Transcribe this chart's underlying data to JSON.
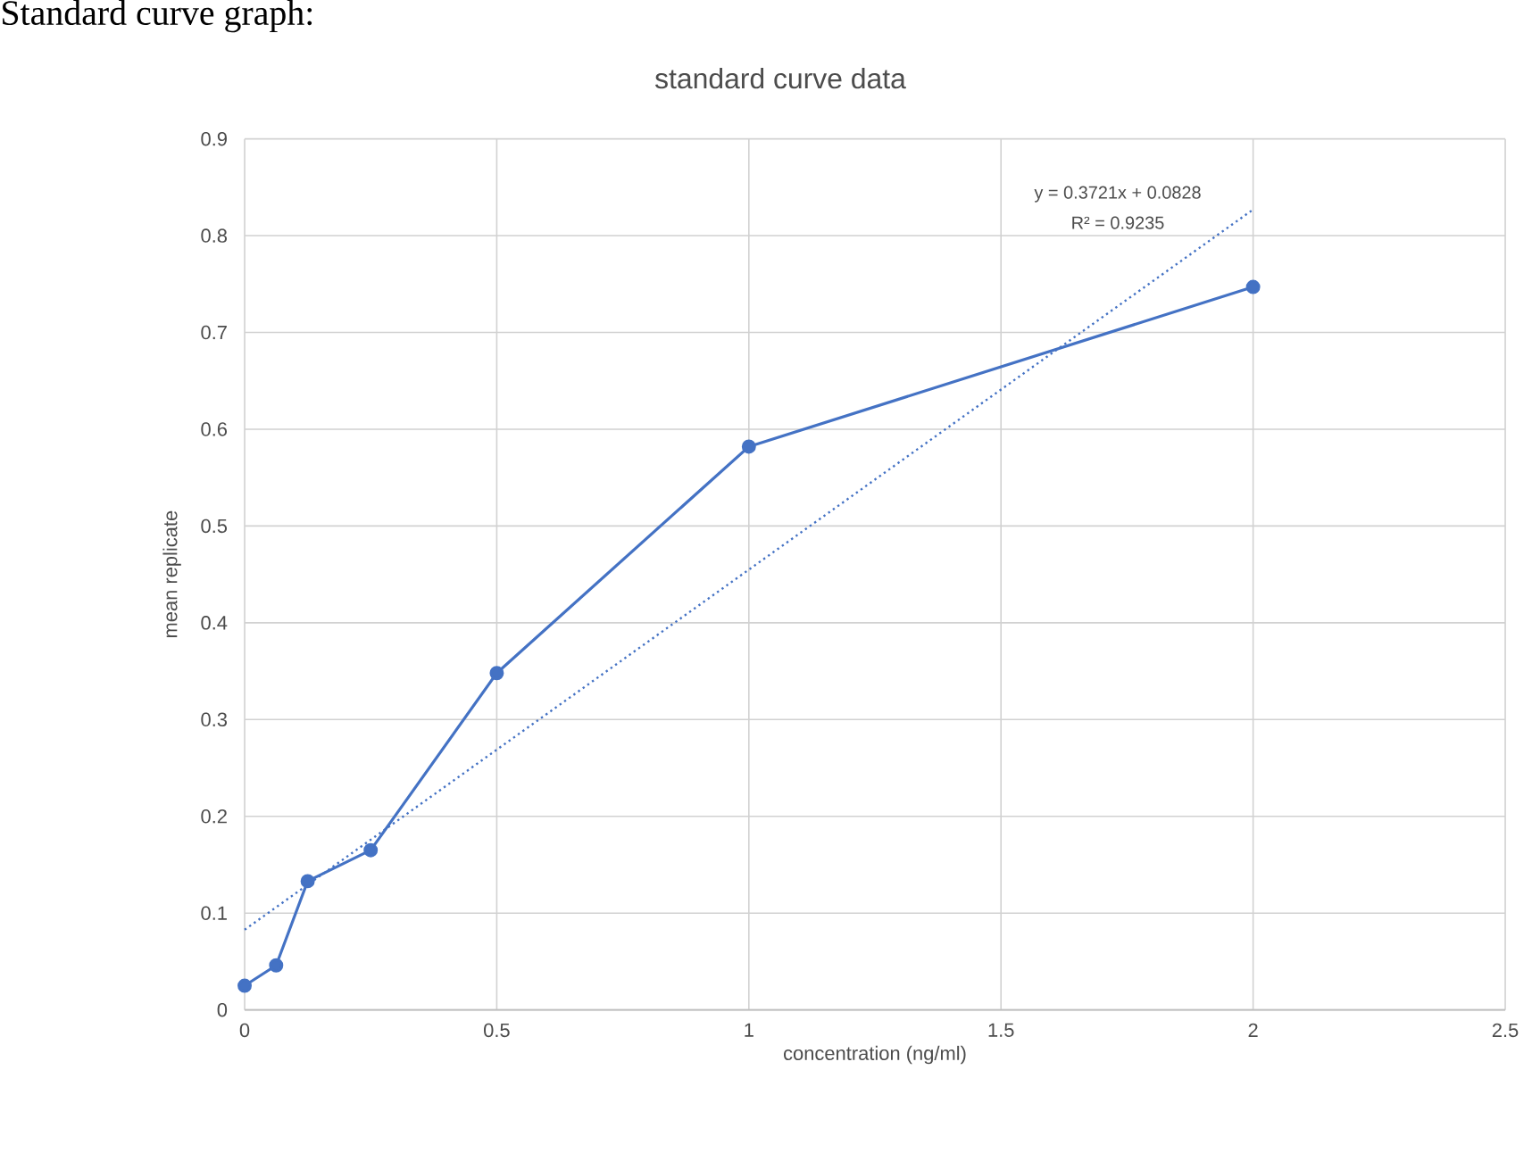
{
  "chart_data": {
    "type": "line",
    "title": "standard curve data",
    "xlabel": "concentration (ng/ml)",
    "ylabel": "mean replicate",
    "annotations": [
      "Standard curve graph:",
      "y = 0.3721x + 0.0828",
      "R² = 0.9235"
    ],
    "series": [
      {
        "color": "#4472c4",
        "x": [
          0,
          0.0625,
          0.125,
          0.25,
          0.5,
          1,
          2
        ],
        "values": [
          0.025,
          0.046,
          0.133,
          0.165,
          0.348,
          0.582,
          0.747
        ]
      },
      {
        "type": "line",
        "color": "#4472c4",
        "line_style": "dotted",
        "marker": "none",
        "x": [
          0,
          2
        ],
        "values": [
          0.0828,
          0.827
        ]
      }
    ],
    "xlim": [
      0,
      2.5
    ],
    "xticks": [
      0,
      0.5,
      1,
      1.5,
      2,
      2.5
    ],
    "ylim": [
      0,
      0.9
    ],
    "yticks": [
      0,
      0.1,
      0.2,
      0.3,
      0.4,
      0.5,
      0.6,
      0.7,
      0.8,
      0.9
    ],
    "grid": true,
    "marker": "circle",
    "line_style": "solid"
  }
}
